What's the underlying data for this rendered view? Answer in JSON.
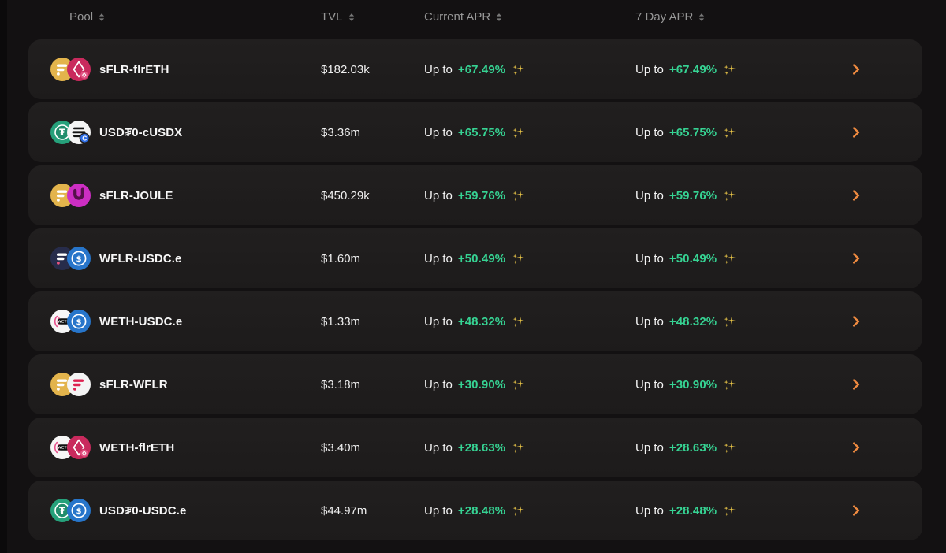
{
  "labels": {
    "up_to": "Up to"
  },
  "header": {
    "pool": "Pool",
    "tvl": "TVL",
    "current_apr": "Current APR",
    "seven_day_apr": "7 Day APR"
  },
  "colors": {
    "page_background": "#131112",
    "row_background": "#1e1c1c",
    "apr_green": "#36d393",
    "chevron_orange": "#f08b40",
    "sparkle_gold": "#e9c548",
    "header_text": "#979797"
  },
  "tokens": {
    "sflr": {
      "name": "sflr-token-icon",
      "style": "flare",
      "bg": "#e3b44c",
      "bar": "#ffffff",
      "dot": "#ffffff"
    },
    "flreth": {
      "name": "flreth-token-icon",
      "style": "eth",
      "bg": "#c92a5d",
      "badge": "#e25584"
    },
    "usdt0": {
      "name": "usdt0-token-icon",
      "style": "tether",
      "bg": "#26a17b"
    },
    "cusdx": {
      "name": "cusdx-token-icon",
      "style": "cusdx",
      "bg": "#f4f4f4",
      "fg": "#141414",
      "badge": "#2e6ee6",
      "badge_label": "C"
    },
    "joule": {
      "name": "joule-token-icon",
      "style": "joule",
      "bg": "#cd2ec3",
      "fg": "#551049"
    },
    "wflr_dark": {
      "name": "wflr-token-icon",
      "style": "flare",
      "bg": "#272c4b",
      "bar": "#ffffff",
      "dot": "#e8547f"
    },
    "wflr_light": {
      "name": "wflr-token-icon",
      "style": "flare",
      "bg": "#f4f4f4",
      "bar": "#de2150",
      "dot": "#de2150"
    },
    "weth": {
      "name": "weth-token-icon",
      "style": "weth",
      "bg": "#f6f6f6",
      "arc": "#e8508c",
      "label": "WETH"
    },
    "usdce": {
      "name": "usdce-token-icon",
      "style": "usdc",
      "bg": "#2775ca"
    }
  },
  "rows": [
    {
      "pair": "sFLR-flrETH",
      "tvl": "$182.03k",
      "current_apr": "+67.49%",
      "seven_day_apr": "+67.49%",
      "icons": [
        "sflr",
        "flreth"
      ]
    },
    {
      "pair": "USD₮0-cUSDX",
      "tvl": "$3.36m",
      "current_apr": "+65.75%",
      "seven_day_apr": "+65.75%",
      "icons": [
        "usdt0",
        "cusdx"
      ]
    },
    {
      "pair": "sFLR-JOULE",
      "tvl": "$450.29k",
      "current_apr": "+59.76%",
      "seven_day_apr": "+59.76%",
      "icons": [
        "sflr",
        "joule"
      ]
    },
    {
      "pair": "WFLR-USDC.e",
      "tvl": "$1.60m",
      "current_apr": "+50.49%",
      "seven_day_apr": "+50.49%",
      "icons": [
        "wflr_dark",
        "usdce"
      ]
    },
    {
      "pair": "WETH-USDC.e",
      "tvl": "$1.33m",
      "current_apr": "+48.32%",
      "seven_day_apr": "+48.32%",
      "icons": [
        "weth",
        "usdce"
      ]
    },
    {
      "pair": "sFLR-WFLR",
      "tvl": "$3.18m",
      "current_apr": "+30.90%",
      "seven_day_apr": "+30.90%",
      "icons": [
        "sflr",
        "wflr_light"
      ]
    },
    {
      "pair": "WETH-flrETH",
      "tvl": "$3.40m",
      "current_apr": "+28.63%",
      "seven_day_apr": "+28.63%",
      "icons": [
        "weth",
        "flreth"
      ]
    },
    {
      "pair": "USD₮0-USDC.e",
      "tvl": "$44.97m",
      "current_apr": "+28.48%",
      "seven_day_apr": "+28.48%",
      "icons": [
        "usdt0",
        "usdce"
      ]
    }
  ]
}
